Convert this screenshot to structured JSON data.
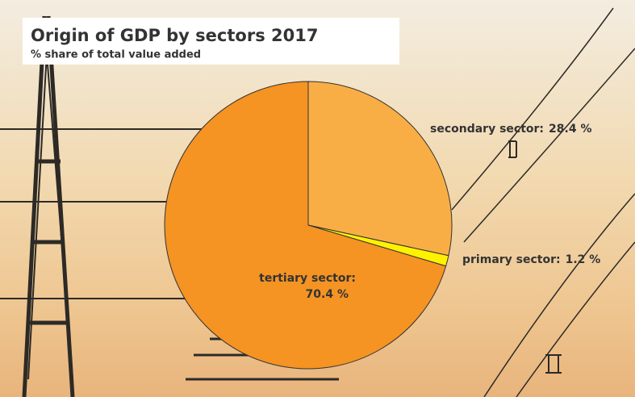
{
  "chart_data": {
    "type": "pie",
    "title": "Origin of GDP by sectors 2017",
    "subtitle": "% share of total value added",
    "categories": [
      "secondary sector:",
      "primary sector:",
      "tertiary sector:"
    ],
    "values": [
      28.4,
      1.2,
      70.4
    ],
    "value_labels": [
      "28.4 %",
      "1.2 %",
      "70.4 %"
    ],
    "colors": [
      "#f9ae45",
      "#fff200",
      "#f59323"
    ]
  }
}
